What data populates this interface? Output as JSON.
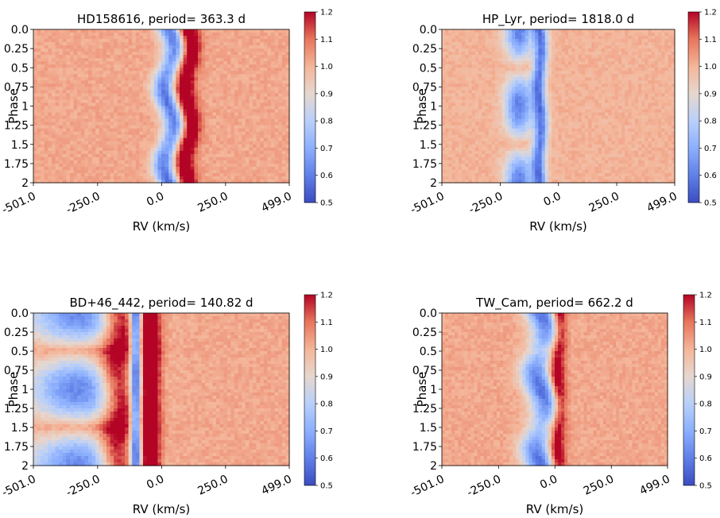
{
  "chart_data": [
    {
      "type": "heatmap",
      "title": "HD158616, period= 363.3 d",
      "xlabel": "RV (km/s)",
      "ylabel": "Phase",
      "x_ticks": [
        "-501.0",
        "-250.0",
        "0.0",
        "250.0",
        "499.0"
      ],
      "x_tick_values": [
        -501,
        -250,
        0,
        250,
        499
      ],
      "y_ticks": [
        "0.0",
        "0.25",
        "0.5",
        "0.75",
        "1",
        "1.25",
        "1.5",
        "1.75",
        "2"
      ],
      "xlim": [
        -501,
        499
      ],
      "ylim": [
        0,
        2
      ],
      "colorbar_ticks": [
        "0.5",
        "0.6",
        "0.7",
        "0.8",
        "0.9",
        "1.0",
        "1.1",
        "1.2"
      ],
      "clim": [
        0.5,
        1.2
      ],
      "colormap": "coolwarm",
      "features": [
        {
          "kind": "absorption",
          "center": 30,
          "width": 45,
          "depth": 0.45,
          "phase_mod": 0.25,
          "wobble": 22
        },
        {
          "kind": "emission",
          "center": 100,
          "width": 40,
          "depth": 0.3,
          "phase_mod": 0.1,
          "wobble": 12
        }
      ],
      "base_level": 1.02
    },
    {
      "type": "heatmap",
      "title": "HP_Lyr, period= 1818.0 d",
      "xlabel": "RV (km/s)",
      "ylabel": "Phase",
      "x_ticks": [
        "-501.0",
        "-250.0",
        "0.0",
        "250.0",
        "499.0"
      ],
      "x_tick_values": [
        -501,
        -250,
        0,
        250,
        499
      ],
      "y_ticks": [
        "0.0",
        "0.25",
        "0.5",
        "0.75",
        "1",
        "1.25",
        "1.5",
        "1.75",
        "2"
      ],
      "xlim": [
        -501,
        499
      ],
      "ylim": [
        0,
        2
      ],
      "colorbar_ticks": [
        "0.5",
        "0.6",
        "0.7",
        "0.8",
        "0.9",
        "1.0",
        "1.1",
        "1.2"
      ],
      "clim": [
        0.5,
        1.2
      ],
      "colormap": "coolwarm",
      "features": [
        {
          "kind": "absorption",
          "center": -80,
          "width": 30,
          "depth": 0.4,
          "phase_mod": 0.0,
          "wobble": 6
        },
        {
          "kind": "absorption",
          "center": -170,
          "width": 60,
          "depth": 0.4,
          "phase_mod": 1.0,
          "wobble": 0
        }
      ],
      "base_level": 1.0
    },
    {
      "type": "heatmap",
      "title": "BD+46_442, period= 140.82 d",
      "xlabel": "RV (km/s)",
      "ylabel": "Phase",
      "x_ticks": [
        "-501.0",
        "-250.0",
        "0.0",
        "250.0",
        "499.0"
      ],
      "x_tick_values": [
        -501,
        -250,
        0,
        250,
        499
      ],
      "y_ticks": [
        "0.0",
        "0.25",
        "0.5",
        "0.75",
        "1",
        "1.25",
        "1.5",
        "1.75",
        "2"
      ],
      "xlim": [
        -501,
        499
      ],
      "ylim": [
        0,
        2
      ],
      "colorbar_ticks": [
        "0.5",
        "0.6",
        "0.7",
        "0.8",
        "0.9",
        "1.0",
        "1.1",
        "1.2"
      ],
      "clim": [
        0.5,
        1.2
      ],
      "colormap": "coolwarm",
      "features": [
        {
          "kind": "emission",
          "center": -170,
          "width": 70,
          "depth": 0.35,
          "phase_mod": 0.3,
          "wobble": 10
        },
        {
          "kind": "absorption",
          "center": -100,
          "width": 22,
          "depth": 0.5,
          "phase_mod": 0.0,
          "wobble": 0
        },
        {
          "kind": "emission",
          "center": -45,
          "width": 40,
          "depth": 0.35,
          "phase_mod": 0.0,
          "wobble": 0
        },
        {
          "kind": "absorption",
          "center": -320,
          "width": 200,
          "depth": 0.4,
          "phase_mod": 1.0,
          "wobble": 0
        }
      ],
      "base_level": 1.02
    },
    {
      "type": "heatmap",
      "title": "TW_Cam, period= 662.2 d",
      "xlabel": "RV (km/s)",
      "ylabel": "Phase",
      "x_ticks": [
        "-501.0",
        "-250.0",
        "0.0",
        "250.0",
        "499.0"
      ],
      "x_tick_values": [
        -501,
        -250,
        0,
        250,
        499
      ],
      "y_ticks": [
        "0.0",
        "0.25",
        "0.5",
        "0.75",
        "1",
        "1.25",
        "1.5",
        "1.75",
        "2"
      ],
      "xlim": [
        -501,
        499
      ],
      "ylim": [
        0,
        2
      ],
      "colorbar_ticks": [
        "0.5",
        "0.6",
        "0.7",
        "0.8",
        "0.9",
        "1.0",
        "1.1",
        "1.2"
      ],
      "clim": [
        0.5,
        1.2
      ],
      "colormap": "coolwarm",
      "features": [
        {
          "kind": "absorption",
          "center": -60,
          "width": 70,
          "depth": 0.45,
          "phase_mod": 0.5,
          "wobble": 25
        },
        {
          "kind": "emission",
          "center": 15,
          "width": 35,
          "depth": 0.3,
          "phase_mod": 0.2,
          "wobble": 8
        }
      ],
      "base_level": 1.02
    }
  ]
}
